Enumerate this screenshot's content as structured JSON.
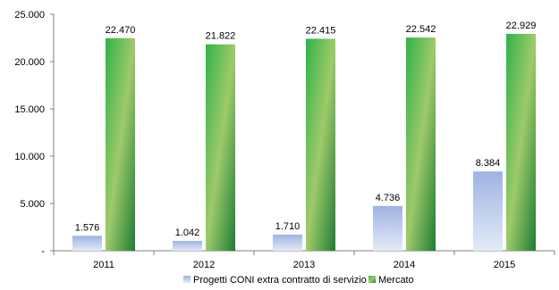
{
  "chart_data": {
    "type": "bar",
    "categories": [
      "2011",
      "2012",
      "2013",
      "2014",
      "2015"
    ],
    "series": [
      {
        "name": "Progetti CONI extra contratto di servizio",
        "values": [
          1576,
          1042,
          1710,
          4736,
          8384
        ],
        "labels": [
          "1.576",
          "1.042",
          "1.710",
          "4.736",
          "8.384"
        ],
        "color": "#b8c7e8"
      },
      {
        "name": "Mercato",
        "values": [
          22470,
          21822,
          22415,
          22542,
          22929
        ],
        "labels": [
          "22.470",
          "21.822",
          "22.415",
          "22.542",
          "22.929"
        ],
        "color": "#2e9e3e"
      }
    ],
    "ylim": [
      0,
      25000
    ],
    "yticks": [
      0,
      5000,
      10000,
      15000,
      20000,
      25000
    ],
    "ytick_labels": [
      "-",
      "5.000",
      "10.000",
      "15.000",
      "20.000",
      "25.000"
    ],
    "grid": false,
    "legend_position": "bottom"
  }
}
